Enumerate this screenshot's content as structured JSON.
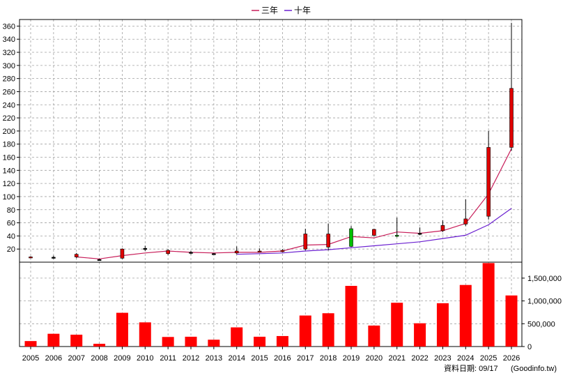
{
  "legend": {
    "ma3_label": "三年",
    "ma10_label": "十年"
  },
  "footer": {
    "date_label": "資料日期: 09/17",
    "source_label": "(Goodinfo.tw)"
  },
  "colors": {
    "up": "#e00000",
    "down": "#00c000",
    "ma3": "#c81e5a",
    "ma10": "#6a1fd0",
    "volume": "#ff0000",
    "grid": "#a0a0a0",
    "axis": "#000000"
  },
  "chart_data": {
    "type": "candlestick_with_volume",
    "x": [
      "2005",
      "2006",
      "2007",
      "2008",
      "2009",
      "2010",
      "2011",
      "2012",
      "2013",
      "2014",
      "2015",
      "2016",
      "2017",
      "2018",
      "2019",
      "2020",
      "2021",
      "2022",
      "2023",
      "2024",
      "2025",
      "2026"
    ],
    "price": {
      "ylim": [
        0,
        370
      ],
      "yticks": [
        20,
        40,
        60,
        80,
        100,
        120,
        140,
        160,
        180,
        200,
        220,
        240,
        260,
        280,
        300,
        320,
        340,
        360
      ],
      "candles": [
        {
          "open": 7,
          "close": 8,
          "high": 9,
          "low": 6
        },
        {
          "open": 7.5,
          "close": 7.5,
          "high": 10,
          "low": 5
        },
        {
          "open": 8,
          "close": 12,
          "high": 14,
          "low": 6
        },
        {
          "open": 4,
          "close": 4,
          "high": 5,
          "low": 3
        },
        {
          "open": 6,
          "close": 20,
          "high": 21,
          "low": 5
        },
        {
          "open": 21,
          "close": 21,
          "high": 25,
          "low": 17
        },
        {
          "open": 13,
          "close": 18,
          "high": 20,
          "low": 11
        },
        {
          "open": 15,
          "close": 15,
          "high": 17,
          "low": 12
        },
        {
          "open": 13,
          "close": 13,
          "high": 14,
          "low": 12
        },
        {
          "open": 14,
          "close": 17,
          "high": 24,
          "low": 12
        },
        {
          "open": 16,
          "close": 17,
          "high": 21,
          "low": 15
        },
        {
          "open": 16,
          "close": 18,
          "high": 20,
          "low": 15
        },
        {
          "open": 20,
          "close": 43,
          "high": 51,
          "low": 18
        },
        {
          "open": 23,
          "close": 43,
          "high": 59,
          "low": 18
        },
        {
          "open": 51,
          "close": 24,
          "high": 55,
          "low": 23
        },
        {
          "open": 41,
          "close": 50,
          "high": 51,
          "low": 39
        },
        {
          "open": 41,
          "close": 40,
          "high": 68,
          "low": 38
        },
        {
          "open": 44,
          "close": 44,
          "high": 53,
          "low": 41
        },
        {
          "open": 48,
          "close": 56,
          "high": 64,
          "low": 46
        },
        {
          "open": 58,
          "close": 66,
          "high": 96,
          "low": 55
        },
        {
          "open": 70,
          "close": 175,
          "high": 200,
          "low": 65
        },
        {
          "open": 175,
          "close": 265,
          "high": 365,
          "low": 170
        }
      ],
      "series": [
        {
          "name": "三年",
          "values": [
            null,
            null,
            8,
            5,
            10,
            14,
            17,
            15,
            14,
            15,
            15,
            17,
            26,
            27,
            39,
            37,
            46,
            44,
            48,
            59,
            104,
            173
          ]
        },
        {
          "name": "十年",
          "values": [
            null,
            null,
            null,
            null,
            null,
            null,
            null,
            null,
            null,
            12,
            13,
            14,
            17,
            19,
            22,
            25,
            28,
            31,
            36,
            41,
            57,
            82
          ]
        }
      ]
    },
    "volume": {
      "ylim": [
        0,
        1850000
      ],
      "yticks": [
        0,
        500000,
        1000000,
        1500000
      ],
      "ytick_labels": [
        "0",
        "500,000",
        "1,000,000",
        "1,500,000"
      ],
      "values": [
        120000,
        280000,
        260000,
        60000,
        740000,
        530000,
        210000,
        215000,
        150000,
        420000,
        215000,
        230000,
        680000,
        730000,
        1330000,
        460000,
        960000,
        510000,
        950000,
        1350000,
        1830000,
        1120000
      ]
    }
  }
}
